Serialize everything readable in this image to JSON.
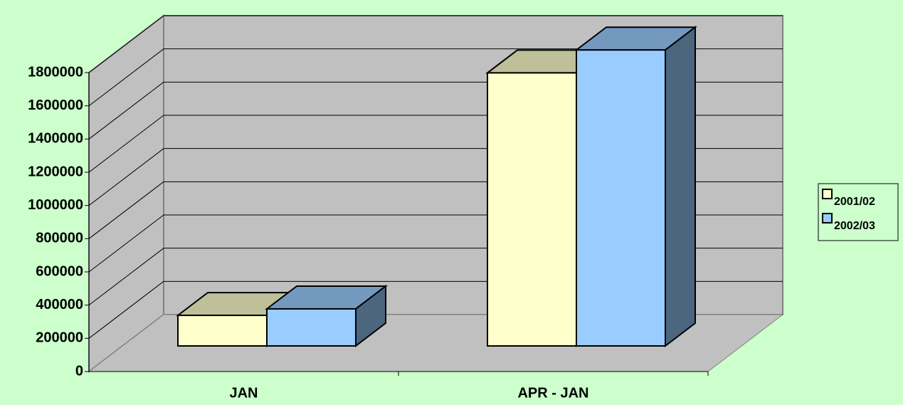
{
  "chart_data": {
    "type": "bar",
    "categories": [
      "JAN",
      "APR - JAN"
    ],
    "series": [
      {
        "name": "2001/02",
        "color": "#ffffcc",
        "values": [
          184000,
          1644000
        ]
      },
      {
        "name": "2002/03",
        "color": "#99ccff",
        "values": [
          223000,
          1782000
        ]
      }
    ],
    "ylim": [
      0,
      1800000
    ],
    "yticks": [
      0,
      200000,
      400000,
      600000,
      800000,
      1000000,
      1200000,
      1400000,
      1600000,
      1800000
    ],
    "grid": true,
    "legend": "right",
    "background": "#ccffcc",
    "wall_color": "#c0c0c0"
  }
}
